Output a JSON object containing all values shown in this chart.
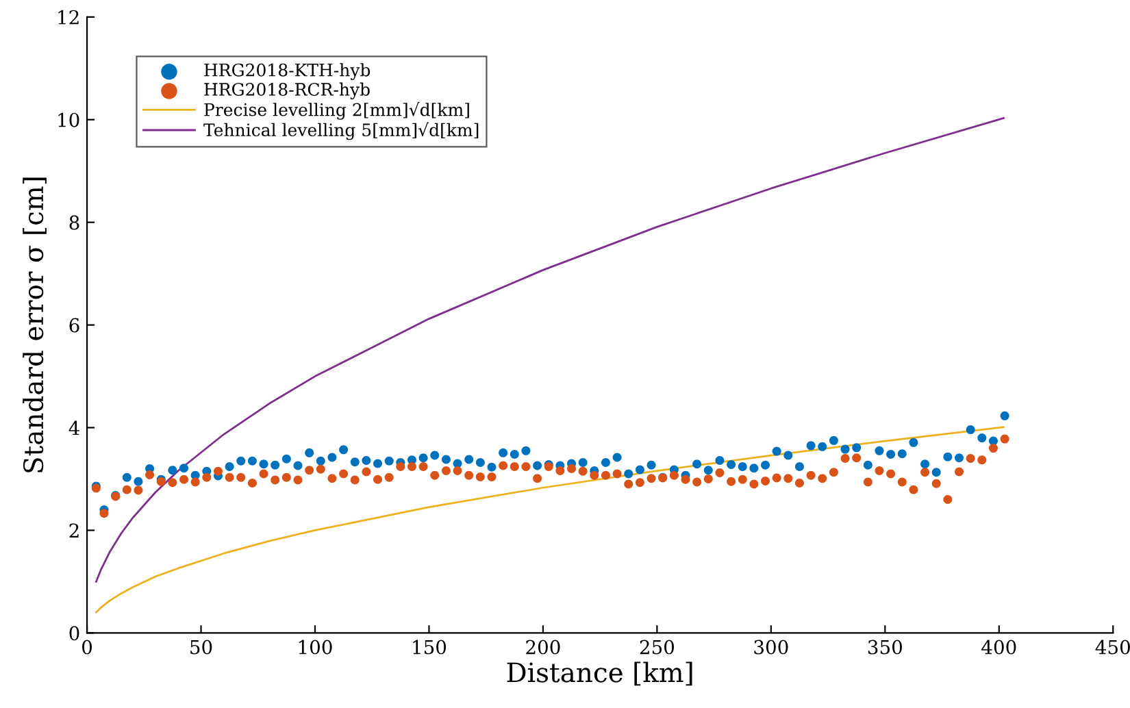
{
  "chart_data": {
    "type": "scatter",
    "xlabel": "Distance [km]",
    "ylabel": "Standard error σ [cm]",
    "xlim": [
      0,
      450
    ],
    "xticks": [
      0,
      50,
      100,
      150,
      200,
      250,
      300,
      350,
      400,
      450
    ],
    "ylim": [
      0,
      12
    ],
    "yticks": [
      0,
      2,
      4,
      6,
      8,
      10,
      12
    ],
    "grid": false,
    "legend": "top left",
    "x": [
      4,
      7.5,
      12.5,
      17.5,
      22.5,
      27.5,
      32.5,
      37.5,
      42.5,
      47.5,
      52.5,
      57.5,
      62.5,
      67.5,
      72.5,
      77.5,
      82.5,
      87.5,
      92.5,
      97.5,
      102.5,
      107.5,
      112.5,
      117.5,
      122.5,
      127.5,
      132.5,
      137.5,
      142.5,
      147.5,
      152.5,
      157.5,
      162.5,
      167.5,
      172.5,
      177.5,
      182.5,
      187.5,
      192.5,
      197.5,
      202.5,
      207.5,
      212.5,
      217.5,
      222.5,
      227.5,
      232.5,
      237.5,
      242.5,
      247.5,
      252.5,
      257.5,
      262.5,
      267.5,
      272.5,
      277.5,
      282.5,
      287.5,
      292.5,
      297.5,
      302.5,
      307.5,
      312.5,
      317.5,
      322.5,
      327.5,
      332.5,
      337.5,
      342.5,
      347.5,
      352.5,
      357.5,
      362.5,
      367.5,
      372.5,
      377.5,
      382.5,
      387.5,
      392.5,
      397.5,
      402.5
    ],
    "series": [
      {
        "name": "HRG2018-KTH-hyb",
        "marker": "circle",
        "color": "#0072bd",
        "values": [
          2.86,
          2.4,
          2.68,
          3.03,
          2.95,
          3.2,
          2.99,
          3.17,
          3.21,
          3.07,
          3.15,
          3.06,
          3.24,
          3.35,
          3.35,
          3.29,
          3.27,
          3.39,
          3.26,
          3.51,
          3.35,
          3.42,
          3.57,
          3.33,
          3.36,
          3.3,
          3.35,
          3.32,
          3.37,
          3.41,
          3.46,
          3.38,
          3.3,
          3.38,
          3.32,
          3.23,
          3.51,
          3.48,
          3.55,
          3.26,
          3.28,
          3.26,
          3.3,
          3.32,
          3.16,
          3.32,
          3.42,
          3.1,
          3.18,
          3.27,
          3.03,
          3.18,
          3.07,
          3.29,
          3.17,
          3.36,
          3.28,
          3.24,
          3.21,
          3.27,
          3.54,
          3.46,
          3.24,
          3.65,
          3.63,
          3.75,
          3.58,
          3.61,
          3.27,
          3.55,
          3.48,
          3.49,
          3.71,
          3.29,
          3.13,
          3.43,
          3.41,
          3.96,
          3.8,
          3.74,
          4.23
        ]
      },
      {
        "name": "HRG2018-RCR-hyb",
        "marker": "circle",
        "color": "#d95319",
        "values": [
          2.82,
          2.33,
          2.66,
          2.79,
          2.78,
          3.08,
          2.95,
          2.93,
          2.99,
          2.94,
          3.03,
          3.15,
          3.03,
          3.03,
          2.92,
          3.1,
          2.98,
          3.03,
          2.98,
          3.17,
          3.19,
          3.01,
          3.1,
          2.98,
          3.14,
          2.99,
          3.03,
          3.24,
          3.24,
          3.24,
          3.07,
          3.16,
          3.16,
          3.07,
          3.04,
          3.04,
          3.26,
          3.24,
          3.24,
          3.01,
          3.24,
          3.16,
          3.2,
          3.15,
          3.07,
          3.07,
          3.1,
          2.9,
          2.93,
          3.01,
          3.02,
          3.07,
          2.99,
          2.94,
          3.0,
          3.12,
          2.95,
          2.99,
          2.9,
          2.96,
          3.02,
          3.01,
          2.92,
          3.07,
          3.01,
          3.13,
          3.4,
          3.41,
          2.94,
          3.16,
          3.1,
          2.94,
          2.79,
          3.13,
          2.91,
          2.6,
          3.14,
          3.4,
          3.37,
          3.6,
          3.78
        ]
      },
      {
        "name": "Precise levelling 2[mm]√d[km]",
        "type": "line",
        "color": "#edb120",
        "x": [
          4,
          6,
          10,
          15,
          20,
          30,
          40,
          60,
          80,
          100,
          150,
          200,
          250,
          300,
          350,
          402
        ],
        "values": [
          0.4,
          0.49,
          0.63,
          0.77,
          0.89,
          1.1,
          1.26,
          1.55,
          1.79,
          2.0,
          2.45,
          2.83,
          3.16,
          3.46,
          3.74,
          4.01
        ]
      },
      {
        "name": "Tehnical levelling 5[mm]√d[km]",
        "type": "line",
        "color": "#7e2f8e",
        "x": [
          4,
          6,
          10,
          15,
          20,
          30,
          40,
          60,
          80,
          100,
          150,
          200,
          250,
          300,
          350,
          402
        ],
        "values": [
          1.0,
          1.22,
          1.58,
          1.94,
          2.24,
          2.74,
          3.16,
          3.87,
          4.47,
          5.0,
          6.12,
          7.07,
          7.91,
          8.66,
          9.35,
          10.03
        ]
      }
    ]
  }
}
